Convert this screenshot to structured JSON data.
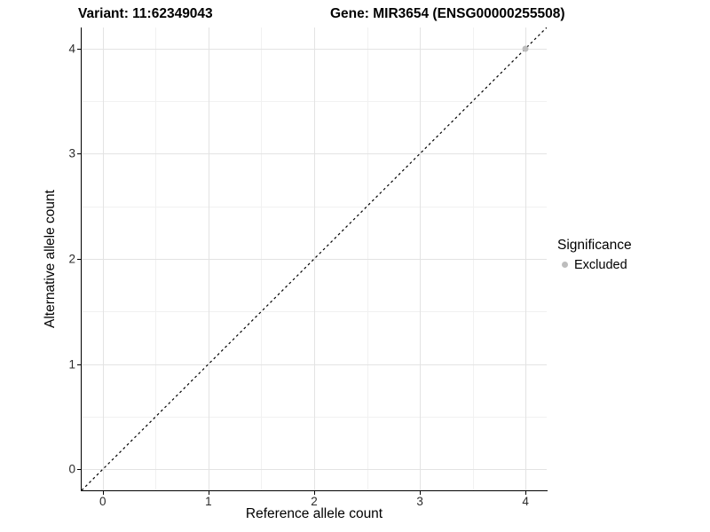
{
  "chart_data": {
    "type": "scatter",
    "title_variant": "Variant: 11:62349043",
    "title_gene": "Gene: MIR3654 (ENSG00000255508)",
    "xlabel": "Reference allele count",
    "ylabel": "Alternative allele count",
    "xlim": [
      -0.2,
      4.2
    ],
    "ylim": [
      -0.2,
      4.2
    ],
    "x_ticks": [
      0,
      1,
      2,
      3,
      4
    ],
    "y_ticks": [
      0,
      1,
      2,
      3,
      4
    ],
    "x_minor_ticks": [
      0.5,
      1.5,
      2.5,
      3.5
    ],
    "y_minor_ticks": [
      0.5,
      1.5,
      2.5,
      3.5
    ],
    "grid": "major+minor",
    "background_color": "#ffffff",
    "major_grid_color": "#e3e3e3",
    "minor_grid_color": "#f1f1f1",
    "axis_color": "#000000",
    "identity_line": {
      "type": "abline",
      "slope": 1,
      "intercept": 0,
      "style": "dashed",
      "color": "#000000"
    },
    "series": [
      {
        "name": "Excluded",
        "color": "#bdbdbd",
        "points": [
          {
            "x": 4,
            "y": 4
          }
        ]
      }
    ],
    "legend": {
      "title": "Significance",
      "position": "right",
      "entries": [
        {
          "label": "Excluded",
          "color": "#bdbdbd"
        }
      ]
    }
  }
}
